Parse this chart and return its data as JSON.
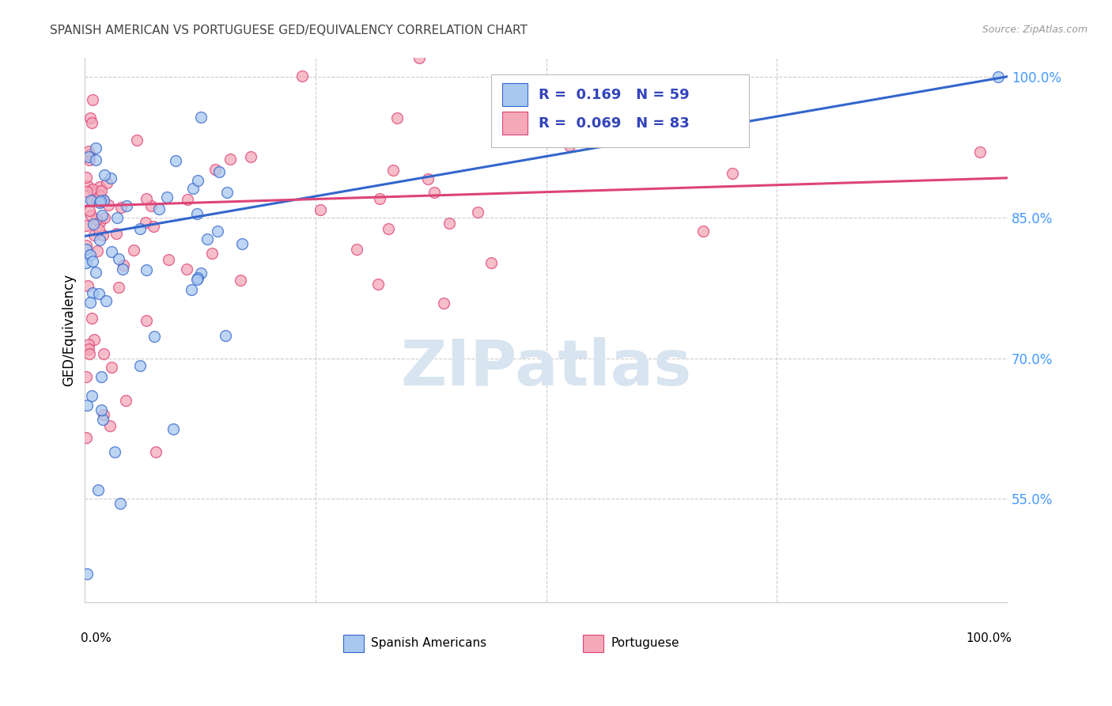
{
  "title": "SPANISH AMERICAN VS PORTUGUESE GED/EQUIVALENCY CORRELATION CHART",
  "source": "Source: ZipAtlas.com",
  "ylabel": "GED/Equivalency",
  "xlim": [
    0.0,
    1.0
  ],
  "ylim": [
    0.44,
    1.02
  ],
  "yticks": [
    0.55,
    0.7,
    0.85,
    1.0
  ],
  "ytick_labels": [
    "55.0%",
    "70.0%",
    "85.0%",
    "100.0%"
  ],
  "color_blue": "#A8C8F0",
  "color_pink": "#F4A8B8",
  "line_color_blue": "#3366CC",
  "line_color_pink": "#DD4477",
  "background_color": "#FFFFFF",
  "grid_color": "#CCCCCC",
  "watermark_color": "#D8E4F0",
  "tick_label_color": "#4499FF",
  "title_color": "#444444",
  "source_color": "#999999"
}
